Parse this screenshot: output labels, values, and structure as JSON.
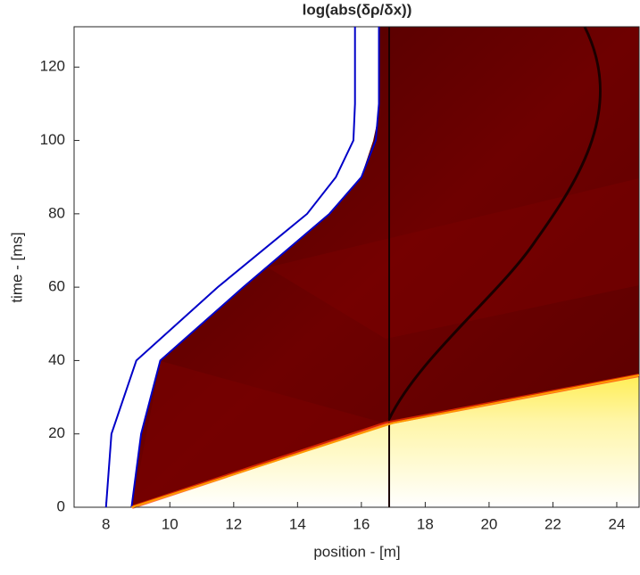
{
  "chart_data": {
    "type": "line",
    "title": "log(abs(δρ/δx))",
    "xlabel": "position - [m]",
    "ylabel": "time - [ms]",
    "xlim": [
      7,
      24.7
    ],
    "ylim": [
      0,
      131
    ],
    "xticks": [
      8,
      10,
      12,
      14,
      16,
      18,
      20,
      22,
      24
    ],
    "yticks": [
      0,
      20,
      40,
      60,
      80,
      100,
      120
    ],
    "grid": false,
    "series": [
      {
        "color": "#0000c8",
        "x": [
          8.0,
          8.17,
          8.95,
          11.5,
          14.3,
          15.2,
          15.75,
          15.8,
          15.8
        ],
        "y": [
          0,
          20,
          40,
          60,
          80,
          90,
          100,
          110,
          131
        ]
      },
      {
        "color": "#0000c8",
        "x": [
          8.8,
          9.1,
          9.7,
          12.3,
          15.0,
          16.0,
          16.45,
          16.55,
          16.55
        ],
        "y": [
          0,
          20,
          40,
          60,
          80,
          90,
          100,
          110,
          131
        ]
      },
      {
        "color": "#ff9900",
        "x": [
          8.8,
          17,
          24.7
        ],
        "y": [
          0,
          23,
          36
        ]
      }
    ]
  }
}
